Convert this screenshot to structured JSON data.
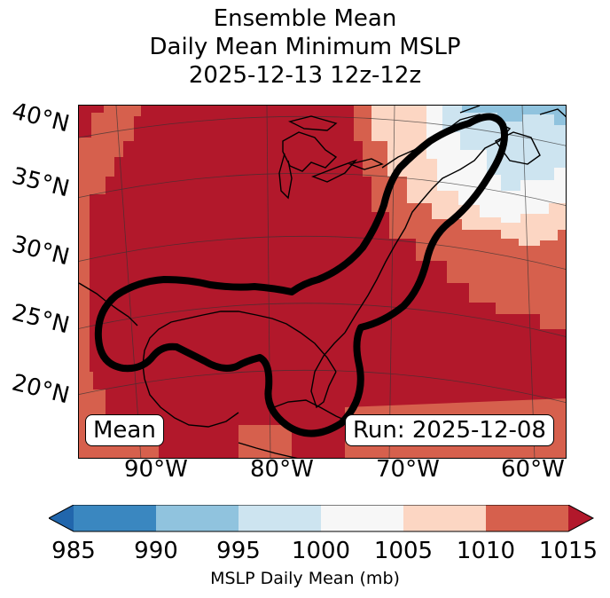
{
  "title": {
    "line1": "Ensemble Mean",
    "line2": "Daily Mean Minimum MSLP",
    "line3": "2025-12-13 12z-12z"
  },
  "map": {
    "lat_labels": [
      "40°N",
      "35°N",
      "30°N",
      "25°N",
      "20°N"
    ],
    "lon_labels": [
      "90°W",
      "80°W",
      "70°W",
      "60°W"
    ],
    "mean_label": "Mean",
    "run_label": "Run: 2025-12-08",
    "colors": {
      "c985": "#3a87c0",
      "c990": "#90c3de",
      "c995": "#cde4f0",
      "c1000": "#f7f7f7",
      "c1005": "#fcd6c3",
      "c1010": "#d6604d",
      "c1015": "#b2182b",
      "over": "#b2182b",
      "under": "#2166ac"
    }
  },
  "colorbar": {
    "ticks": [
      "985",
      "990",
      "995",
      "1000",
      "1005",
      "1010",
      "1015"
    ],
    "label": "MSLP Daily Mean (mb)"
  }
}
